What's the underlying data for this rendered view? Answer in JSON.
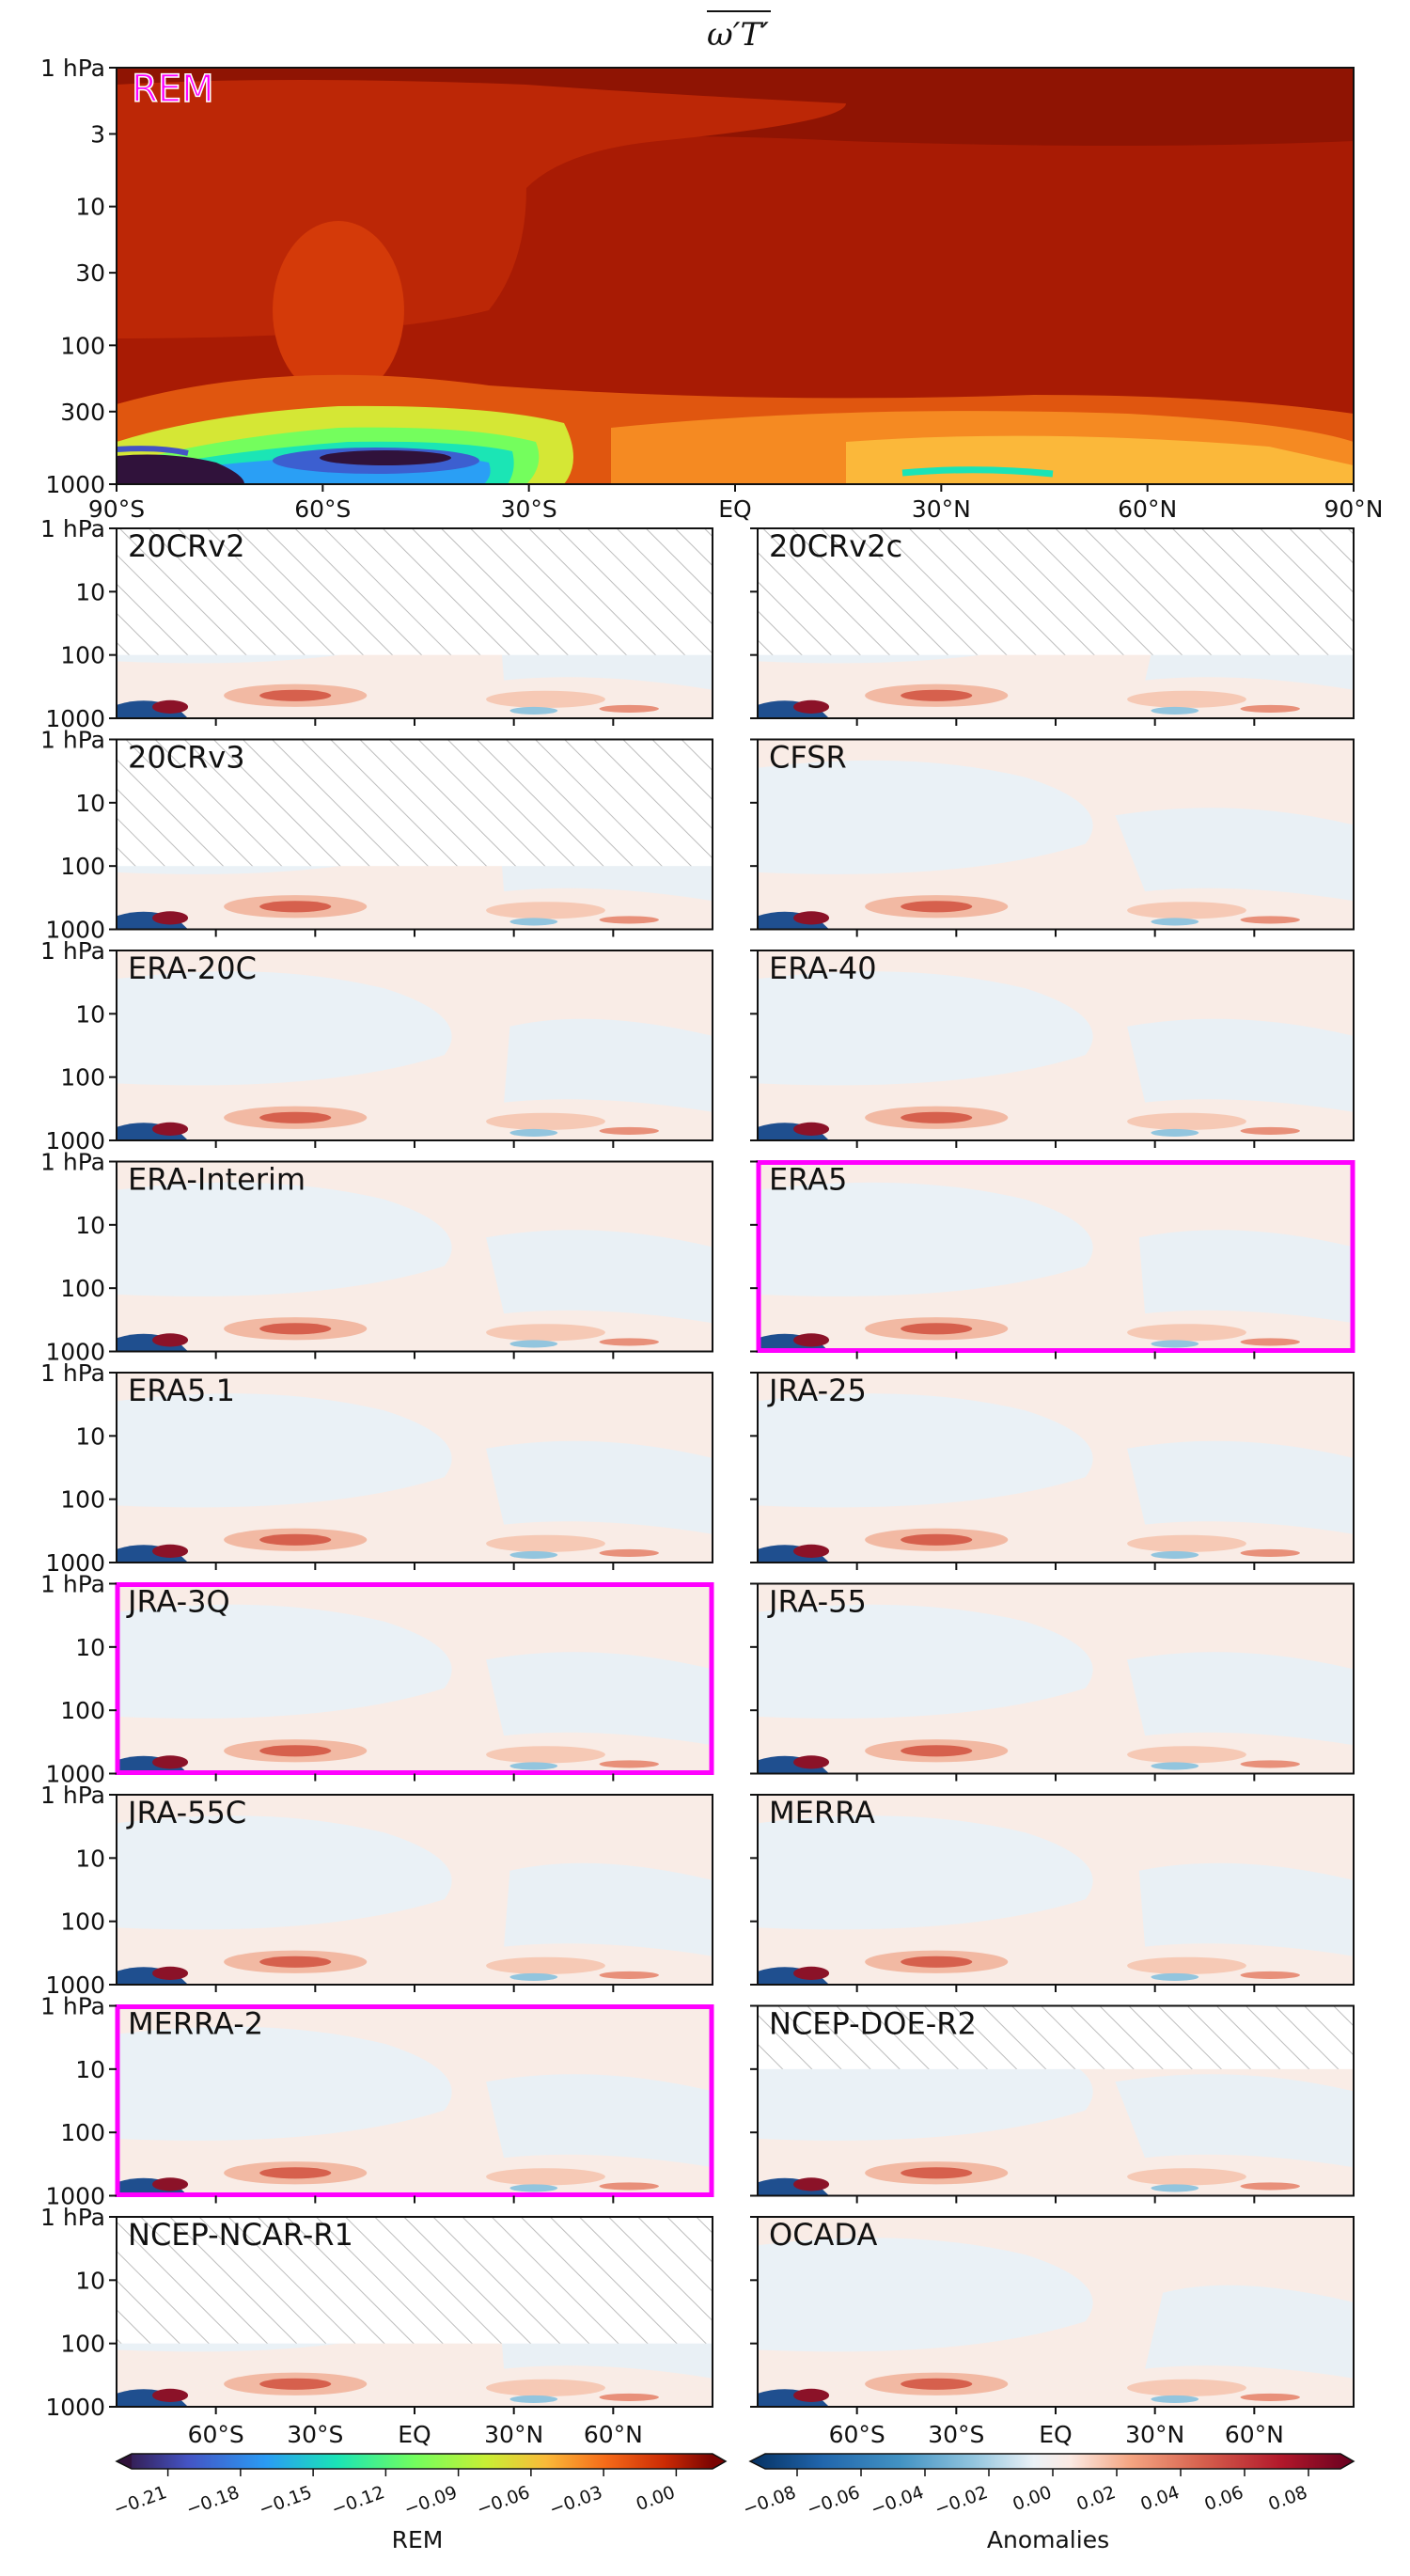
{
  "chart_data": {
    "type": "heatmap",
    "title": "ω′T′ (overline)",
    "title_parts": {
      "omega": "ω",
      "t": "T",
      "prime": "′"
    },
    "x_ticks_top": [
      "90°S",
      "60°S",
      "30°S",
      "EQ",
      "30°N",
      "60°N",
      "90°N"
    ],
    "x_ticks_bottom": [
      "60°S",
      "30°S",
      "EQ",
      "30°N",
      "60°N"
    ],
    "y_ticks_top": [
      "1 hPa",
      "3",
      "10",
      "30",
      "100",
      "300",
      "1000"
    ],
    "y_ticks_small": [
      "1 hPa",
      "10",
      "100",
      "1000"
    ],
    "xlim": [
      -90,
      90
    ],
    "ylim": [
      1000,
      1
    ],
    "y_scale": "log",
    "reference": {
      "label": "REM",
      "color": "#ff00ff"
    },
    "highlight_color": "#ff00ff",
    "panels": [
      {
        "name": "20CRv2",
        "top_hpa": 100,
        "highlight": false
      },
      {
        "name": "20CRv2c",
        "top_hpa": 100,
        "highlight": false
      },
      {
        "name": "20CRv3",
        "top_hpa": 100,
        "highlight": false
      },
      {
        "name": "CFSR",
        "top_hpa": 1,
        "highlight": false
      },
      {
        "name": "ERA-20C",
        "top_hpa": 1,
        "highlight": false
      },
      {
        "name": "ERA-40",
        "top_hpa": 1,
        "highlight": false
      },
      {
        "name": "ERA-Interim",
        "top_hpa": 1,
        "highlight": false
      },
      {
        "name": "ERA5",
        "top_hpa": 1,
        "highlight": true
      },
      {
        "name": "ERA5.1",
        "top_hpa": 1,
        "highlight": false
      },
      {
        "name": "JRA-25",
        "top_hpa": 1,
        "highlight": false
      },
      {
        "name": "JRA-3Q",
        "top_hpa": 1,
        "highlight": true
      },
      {
        "name": "JRA-55",
        "top_hpa": 1,
        "highlight": false
      },
      {
        "name": "JRA-55C",
        "top_hpa": 1,
        "highlight": false
      },
      {
        "name": "MERRA",
        "top_hpa": 1,
        "highlight": false
      },
      {
        "name": "MERRA-2",
        "top_hpa": 1,
        "highlight": true
      },
      {
        "name": "NCEP-DOE-R2",
        "top_hpa": 10,
        "highlight": false
      },
      {
        "name": "NCEP-NCAR-R1",
        "top_hpa": 100,
        "highlight": false
      },
      {
        "name": "OCADA",
        "top_hpa": 1,
        "highlight": false
      }
    ],
    "colorbar_rem": {
      "label": "REM",
      "ticks": [
        "−0.21",
        "−0.18",
        "−0.15",
        "−0.12",
        "−0.09",
        "−0.06",
        "−0.03",
        "0.00"
      ],
      "tick_values": [
        -0.21,
        -0.18,
        -0.15,
        -0.12,
        -0.09,
        -0.06,
        -0.03,
        0.0
      ],
      "range": [
        -0.225,
        0.015
      ],
      "colormap": "turbo"
    },
    "colorbar_anomalies": {
      "label": "Anomalies",
      "ticks": [
        "−0.08",
        "−0.06",
        "−0.04",
        "−0.02",
        "0.00",
        "0.02",
        "0.04",
        "0.06",
        "0.08"
      ],
      "tick_values": [
        -0.08,
        -0.06,
        -0.04,
        -0.02,
        0.0,
        0.02,
        0.04,
        0.06,
        0.08
      ],
      "range": [
        -0.09,
        0.09
      ],
      "colormap": "RdBu_r"
    }
  }
}
